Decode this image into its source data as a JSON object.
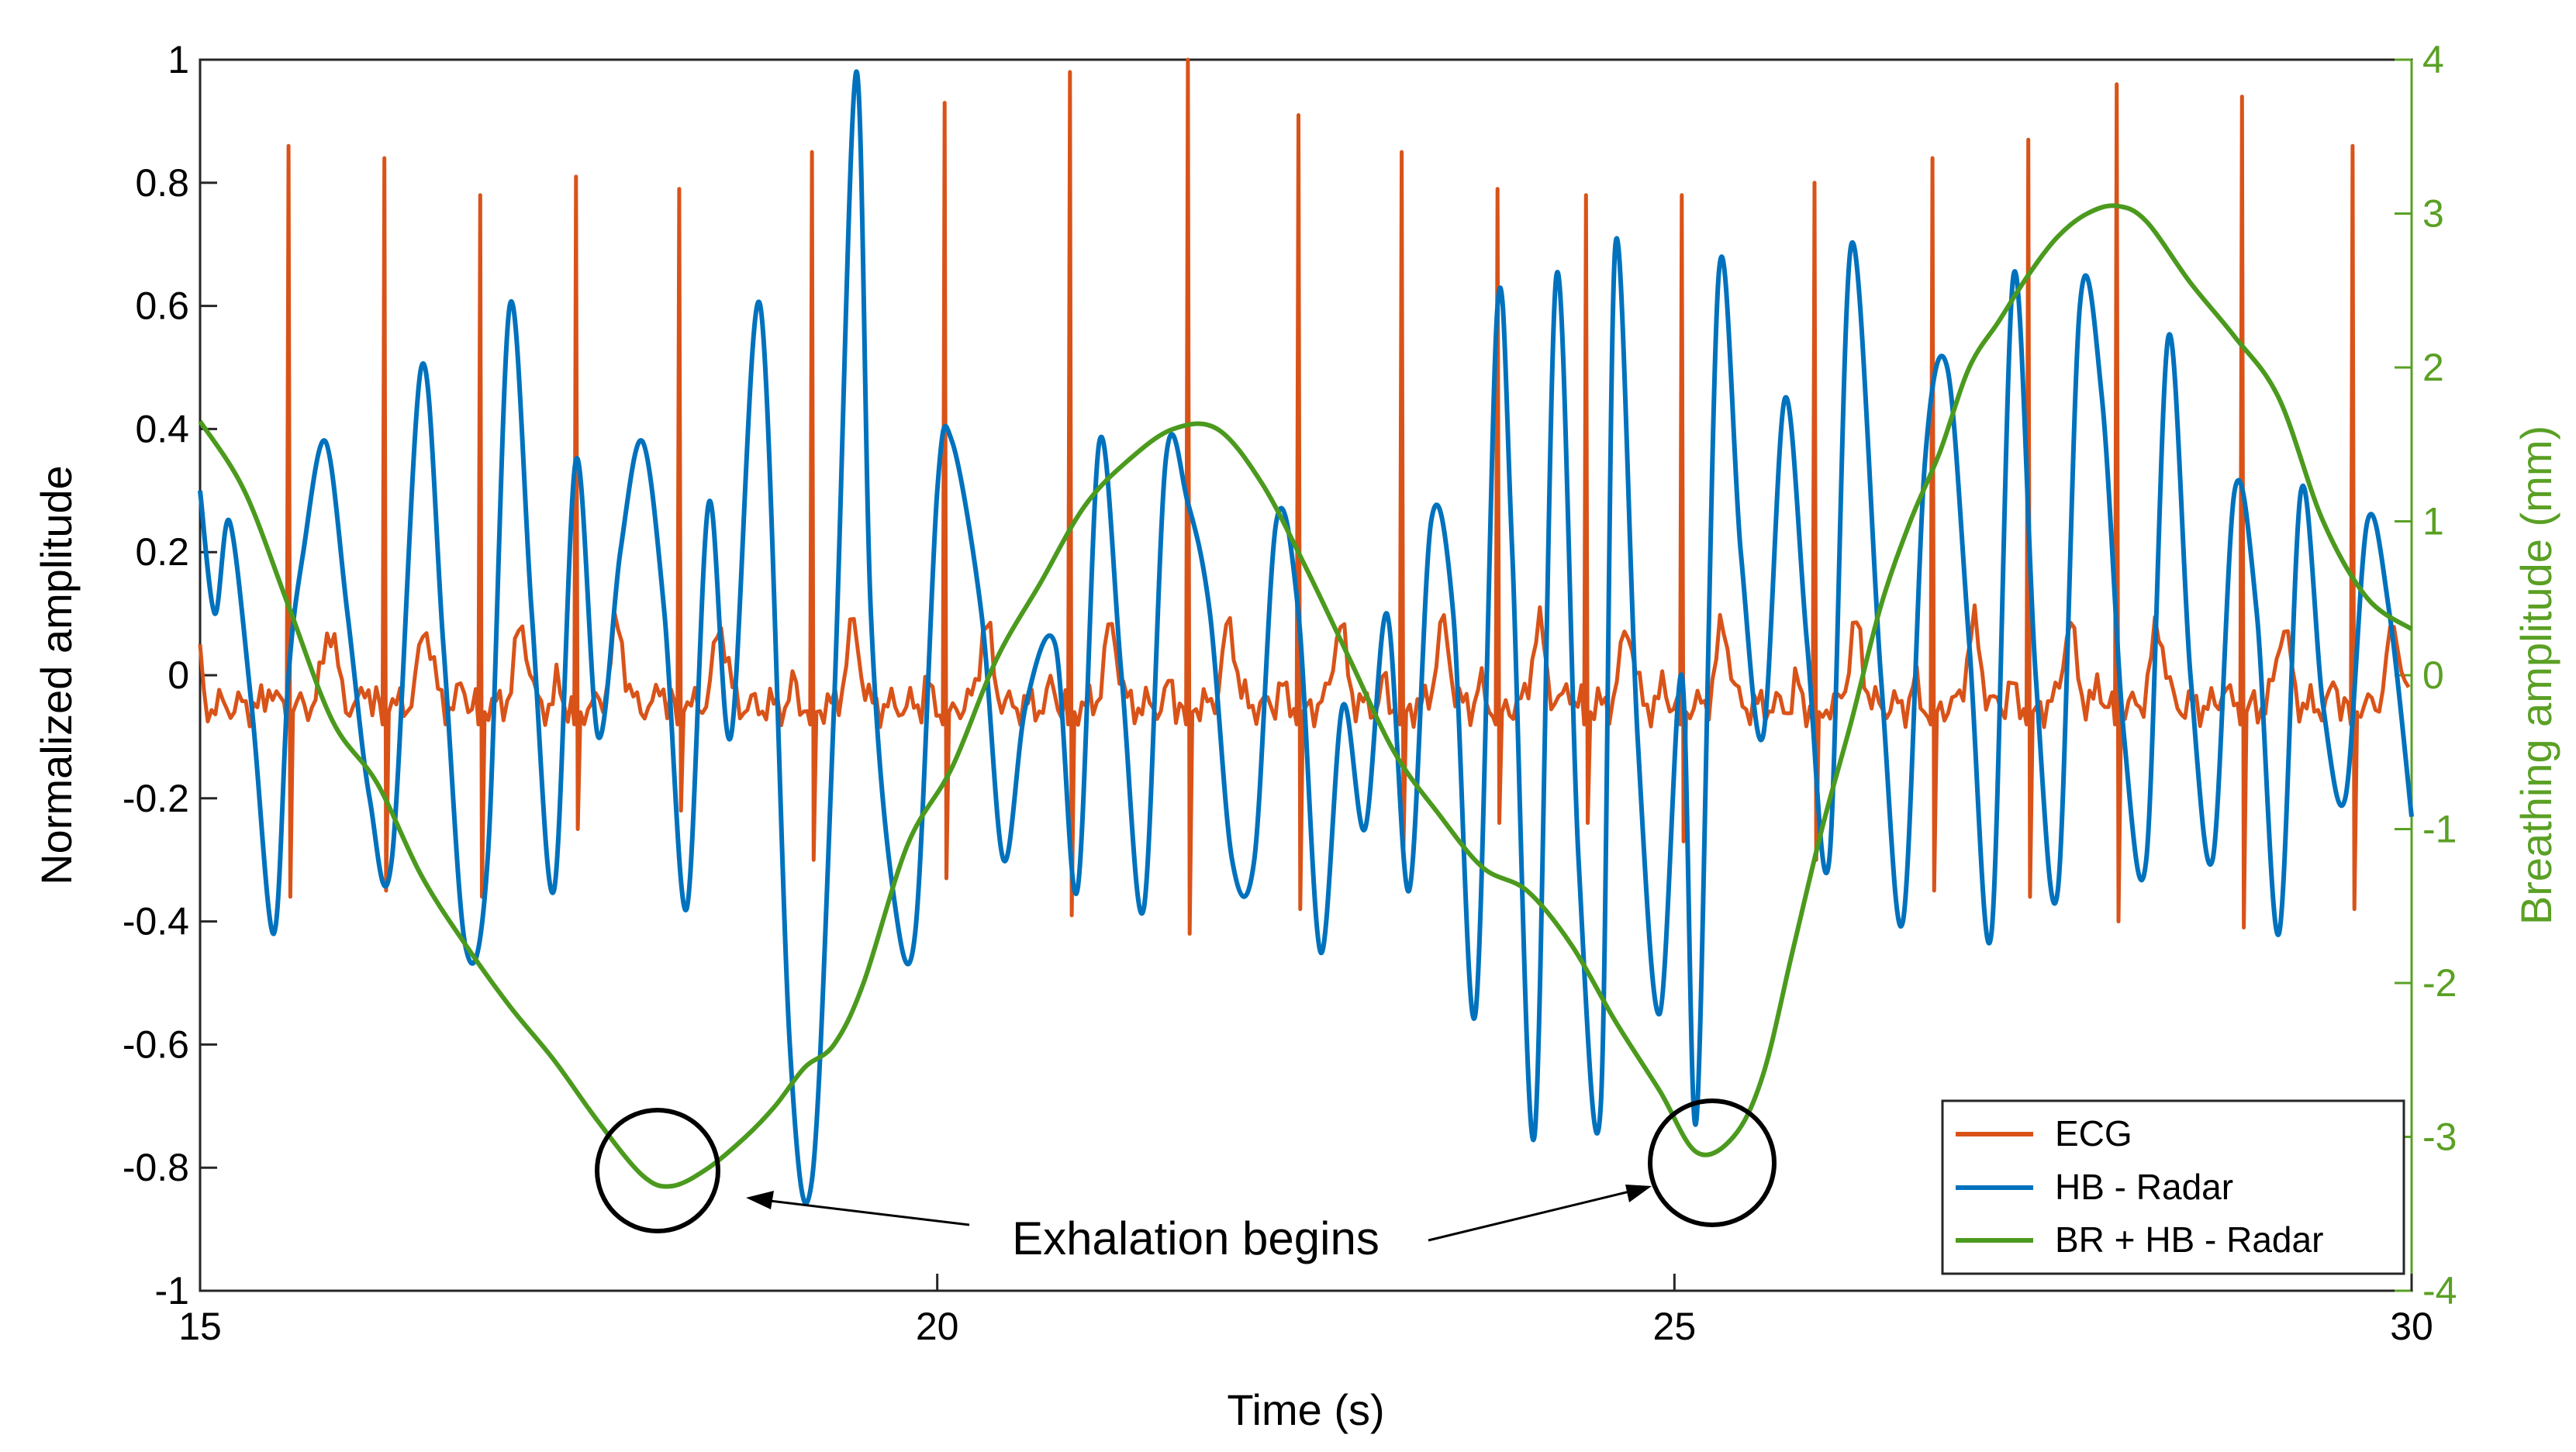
{
  "colors": {
    "ecg": "#d95319",
    "hb_radar": "#0072bd",
    "br_hb_radar": "#4b9a1e",
    "right_axis": "#5aa024"
  },
  "chart_data": {
    "type": "line",
    "title": "",
    "xlabel": "Time (s)",
    "ylabel": "Normalized amplitude",
    "y2label": "Breathing amplitude (mm)",
    "xlim": [
      15,
      30
    ],
    "ylim": [
      -1,
      1
    ],
    "y2lim": [
      -4,
      4
    ],
    "x_ticks": [
      "15",
      "20",
      "25",
      "30"
    ],
    "x_tick_values": [
      15,
      20,
      25,
      30
    ],
    "y_ticks": [
      "-1",
      "-0.8",
      "-0.6",
      "-0.4",
      "-0.2",
      "0",
      "0.2",
      "0.4",
      "0.6",
      "0.8",
      "1"
    ],
    "y_tick_values": [
      -1,
      -0.8,
      -0.6,
      -0.4,
      -0.2,
      0,
      0.2,
      0.4,
      0.6,
      0.8,
      1
    ],
    "y2_ticks": [
      "-4",
      "-3",
      "-2",
      "-1",
      "0",
      "1",
      "2",
      "3",
      "4"
    ],
    "y2_tick_values": [
      -4,
      -3,
      -2,
      -1,
      0,
      1,
      2,
      3,
      4
    ],
    "legend_position": "bottom-right",
    "series": [
      {
        "name": "ECG",
        "axis": "left",
        "r_peaks": [
          {
            "t": 15.6,
            "peak": 0.86,
            "trough": -0.36
          },
          {
            "t": 16.25,
            "peak": 0.84,
            "trough": -0.35
          },
          {
            "t": 16.9,
            "peak": 0.78,
            "trough": -0.36
          },
          {
            "t": 17.55,
            "peak": 0.81,
            "trough": -0.25
          },
          {
            "t": 18.25,
            "peak": 0.79,
            "trough": -0.22
          },
          {
            "t": 19.15,
            "peak": 0.85,
            "trough": -0.3
          },
          {
            "t": 20.05,
            "peak": 0.93,
            "trough": -0.33
          },
          {
            "t": 20.9,
            "peak": 0.98,
            "trough": -0.39
          },
          {
            "t": 21.7,
            "peak": 1.0,
            "trough": -0.42
          },
          {
            "t": 22.45,
            "peak": 0.91,
            "trough": -0.38
          },
          {
            "t": 23.15,
            "peak": 0.85,
            "trough": -0.28
          },
          {
            "t": 23.8,
            "peak": 0.79,
            "trough": -0.24
          },
          {
            "t": 24.4,
            "peak": 0.78,
            "trough": -0.24
          },
          {
            "t": 25.05,
            "peak": 0.78,
            "trough": -0.27
          },
          {
            "t": 25.95,
            "peak": 0.8,
            "trough": -0.3
          },
          {
            "t": 26.75,
            "peak": 0.84,
            "trough": -0.35
          },
          {
            "t": 27.4,
            "peak": 0.87,
            "trough": -0.36
          },
          {
            "t": 28.0,
            "peak": 0.96,
            "trough": -0.4
          },
          {
            "t": 28.85,
            "peak": 0.94,
            "trough": -0.41
          },
          {
            "t": 29.6,
            "peak": 0.86,
            "trough": -0.38
          }
        ]
      },
      {
        "name": "HB - Radar",
        "axis": "left",
        "t": [
          15,
          15.1,
          15.2,
          15.35,
          15.5,
          15.6,
          15.7,
          15.85,
          16.0,
          16.15,
          16.3,
          16.5,
          16.65,
          16.8,
          16.95,
          17.1,
          17.25,
          17.4,
          17.55,
          17.7,
          17.85,
          18.0,
          18.15,
          18.3,
          18.45,
          18.6,
          18.8,
          19.0,
          19.15,
          19.3,
          19.45,
          19.55,
          19.7,
          19.85,
          20.0,
          20.1,
          20.3,
          20.45,
          20.6,
          20.8,
          20.95,
          21.1,
          21.25,
          21.4,
          21.55,
          21.7,
          21.85,
          22.0,
          22.15,
          22.3,
          22.45,
          22.6,
          22.75,
          22.9,
          23.05,
          23.2,
          23.35,
          23.5,
          23.65,
          23.8,
          23.9,
          24.05,
          24.2,
          24.35,
          24.5,
          24.6,
          24.75,
          24.9,
          25.05,
          25.15,
          25.3,
          25.45,
          25.6,
          25.75,
          25.9,
          26.05,
          26.2,
          26.4,
          26.55,
          26.7,
          26.85,
          27.0,
          27.15,
          27.3,
          27.45,
          27.6,
          27.75,
          27.9,
          28.05,
          28.2,
          28.35,
          28.5,
          28.65,
          28.8,
          28.95,
          29.1,
          29.25,
          29.4,
          29.55,
          29.7,
          29.85,
          30.0
        ],
        "values": [
          0.3,
          0.1,
          0.25,
          -0.05,
          -0.42,
          0.0,
          0.2,
          0.38,
          0.1,
          -0.2,
          -0.3,
          0.5,
          0.05,
          -0.44,
          -0.3,
          0.6,
          0.1,
          -0.35,
          0.35,
          -0.1,
          0.2,
          0.38,
          0.1,
          -0.38,
          0.28,
          -0.1,
          0.6,
          -0.6,
          -0.82,
          -0.05,
          0.98,
          0.1,
          -0.35,
          -0.42,
          0.3,
          0.38,
          0.1,
          -0.3,
          -0.05,
          0.05,
          -0.35,
          0.38,
          0.0,
          -0.38,
          0.35,
          0.28,
          0.1,
          -0.3,
          -0.3,
          0.25,
          0.1,
          -0.45,
          -0.05,
          -0.25,
          0.1,
          -0.35,
          0.25,
          0.1,
          -0.55,
          0.6,
          0.2,
          -0.75,
          0.65,
          -0.3,
          -0.7,
          0.7,
          -0.1,
          -0.55,
          0.0,
          -0.72,
          0.65,
          0.2,
          -0.1,
          0.45,
          0.05,
          -0.3,
          0.7,
          0.0,
          -0.4,
          0.35,
          0.5,
          0.05,
          -0.42,
          0.65,
          0.0,
          -0.35,
          0.6,
          0.45,
          -0.1,
          -0.3,
          0.55,
          0.0,
          -0.3,
          0.3,
          0.1,
          -0.42,
          0.3,
          -0.05,
          -0.2,
          0.25,
          0.1,
          -0.23
        ]
      },
      {
        "name": "BR + HB - Radar",
        "axis": "right",
        "t": [
          15,
          15.3,
          15.6,
          15.9,
          16.2,
          16.5,
          16.8,
          17.1,
          17.4,
          17.7,
          18.0,
          18.2,
          18.45,
          18.7,
          18.9,
          19.1,
          19.3,
          19.5,
          19.8,
          20.1,
          20.4,
          20.7,
          21.0,
          21.3,
          21.6,
          21.9,
          22.2,
          22.5,
          22.8,
          23.1,
          23.4,
          23.7,
          24.0,
          24.3,
          24.6,
          24.9,
          25.15,
          25.4,
          25.6,
          25.8,
          26.0,
          26.2,
          26.4,
          26.6,
          26.8,
          27.0,
          27.2,
          27.4,
          27.6,
          27.8,
          28.0,
          28.2,
          28.5,
          28.8,
          29.1,
          29.4,
          29.7,
          30.0
        ],
        "values": [
          1.65,
          1.2,
          0.45,
          -0.3,
          -0.7,
          -1.3,
          -1.75,
          -2.15,
          -2.5,
          -2.9,
          -3.25,
          -3.32,
          -3.2,
          -3.0,
          -2.8,
          -2.55,
          -2.4,
          -2.0,
          -1.1,
          -0.6,
          0.1,
          0.6,
          1.1,
          1.4,
          1.6,
          1.6,
          1.25,
          0.7,
          0.1,
          -0.5,
          -0.9,
          -1.25,
          -1.4,
          -1.75,
          -2.25,
          -2.7,
          -3.1,
          -3.0,
          -2.6,
          -1.8,
          -1.0,
          -0.3,
          0.45,
          1.0,
          1.45,
          2.0,
          2.3,
          2.6,
          2.85,
          3.0,
          3.05,
          2.95,
          2.55,
          2.2,
          1.8,
          1.0,
          0.5,
          0.3
        ]
      }
    ],
    "legend": [
      "ECG",
      "HB - Radar",
      "BR + HB - Radar"
    ],
    "annotations": [
      {
        "text": "Exhalation begins",
        "points_to": [
          {
            "x": 18.15,
            "y2": -3.25
          },
          {
            "x": 25.2,
            "y2": -3.2
          }
        ]
      }
    ]
  }
}
